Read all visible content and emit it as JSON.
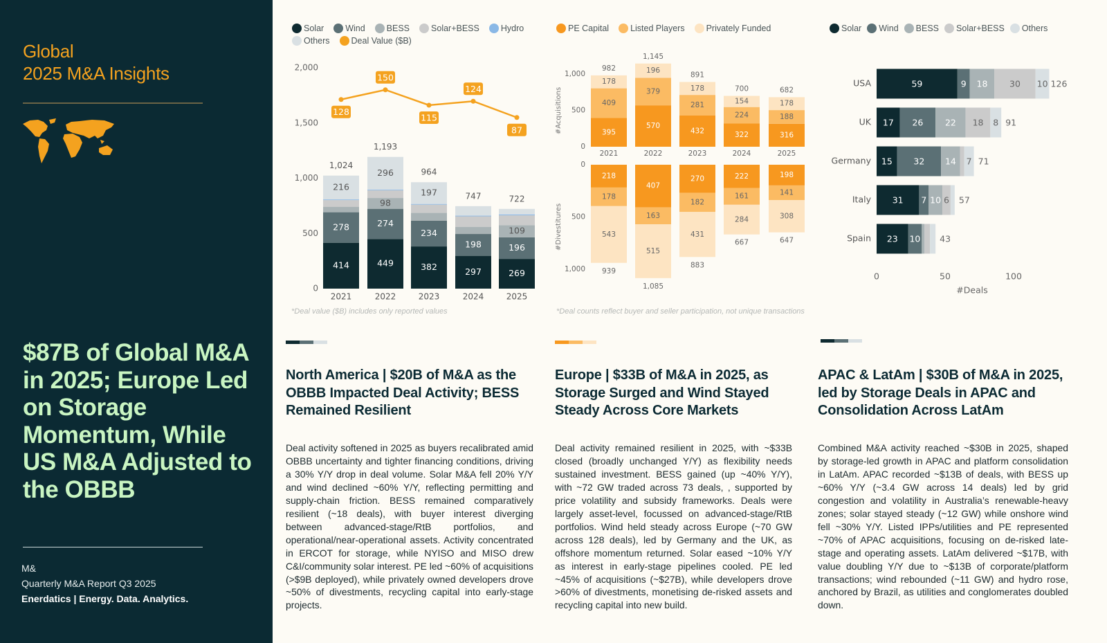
{
  "left": {
    "title_line1": "Global",
    "title_line2": "2025 M&A Insights",
    "map_icon": "world-map-icon",
    "headline": "$87B of Global M&A in 2025; Europe Led on Storage Momentum, While US M&A Adjusted to the OBBB",
    "footer_line1": "M&",
    "footer_line2": "Quarterly M&A Report Q3 2025",
    "footer_brand": "Enerdatics | Energy. Data. Analytics."
  },
  "colors": {
    "panel": "#0b2a33",
    "accent": "#f4a21f",
    "headline": "#c9f5c2",
    "solar": "#0e2a30",
    "wind": "#5b7075",
    "bess": "#a9b3b5",
    "solar_bess": "#cbcbcb",
    "hydro": "#8ab8e6",
    "others": "#d9e0e3",
    "pe": "#f7981f",
    "listed": "#fbbb63",
    "private": "#fde4c2"
  },
  "chart_data": [
    {
      "type": "bar",
      "stacked": true,
      "title": "",
      "categories": [
        "2021",
        "2022",
        "2023",
        "2024",
        "2025"
      ],
      "ylim": [
        0,
        2000
      ],
      "yticks": [
        "0",
        "500",
        "1,000",
        "1,500",
        "2,000"
      ],
      "series": [
        {
          "name": "Solar",
          "values": [
            414,
            449,
            382,
            297,
            269
          ]
        },
        {
          "name": "Wind",
          "values": [
            278,
            274,
            234,
            198,
            196
          ]
        },
        {
          "name": "BESS",
          "values": [
            50,
            98,
            70,
            65,
            109
          ]
        },
        {
          "name": "Solar+BESS",
          "values": [
            60,
            70,
            75,
            95,
            90
          ]
        },
        {
          "name": "Hydro",
          "values": [
            6,
            6,
            6,
            6,
            8
          ]
        },
        {
          "name": "Others",
          "values": [
            216,
            296,
            197,
            86,
            50
          ]
        }
      ],
      "totals": [
        "1,024",
        "1,193",
        "964",
        "747",
        "722"
      ],
      "line": {
        "name": "Deal Value ($B)",
        "type": "line",
        "values": [
          128,
          150,
          115,
          124,
          87
        ]
      },
      "legend": [
        "Solar",
        "Wind",
        "BESS",
        "Solar+BESS",
        "Hydro",
        "Others",
        "Deal Value ($B)"
      ],
      "legend_position": "top",
      "note": "*Deal value ($B) includes only reported values"
    },
    {
      "type": "bar",
      "stacked": true,
      "title": "",
      "categories": [
        "2021",
        "2022",
        "2023",
        "2024",
        "2025"
      ],
      "acquisitions": {
        "ylabel": "#Acquisitions",
        "yticks": [
          "0",
          "500",
          "1,000"
        ],
        "ylim": [
          0,
          1000
        ],
        "series": [
          {
            "name": "PE Capital",
            "values": [
              395,
              570,
              432,
              322,
              316
            ]
          },
          {
            "name": "Listed Players",
            "values": [
              409,
              379,
              281,
              224,
              188
            ]
          },
          {
            "name": "Privately Funded",
            "values": [
              178,
              196,
              178,
              154,
              178
            ]
          }
        ],
        "totals": [
          "982",
          "1,145",
          "891",
          "700",
          "682"
        ]
      },
      "divestitures": {
        "ylabel": "#Divestitures",
        "yticks": [
          "0",
          "500",
          "1,000"
        ],
        "ylim": [
          0,
          1000
        ],
        "inverted": true,
        "series": [
          {
            "name": "PE Capital",
            "values": [
              218,
              407,
              270,
              222,
              198
            ]
          },
          {
            "name": "Listed Players",
            "values": [
              178,
              163,
              182,
              161,
              141
            ]
          },
          {
            "name": "Privately Funded",
            "values": [
              543,
              515,
              431,
              284,
              308
            ]
          }
        ],
        "totals": [
          "939",
          "1,085",
          "883",
          "667",
          "647"
        ]
      },
      "legend": [
        "PE Capital",
        "Listed Players",
        "Privately Funded"
      ],
      "legend_position": "top",
      "note": "*Deal counts reflect buyer and seller participation, not unique transactions"
    },
    {
      "type": "bar",
      "orientation": "horizontal",
      "stacked": true,
      "title": "",
      "categories": [
        "USA",
        "UK",
        "Germany",
        "Italy",
        "Spain"
      ],
      "xlabel": "#Deals",
      "xlim": [
        0,
        130
      ],
      "xticks": [
        "0",
        "50",
        "100"
      ],
      "series": [
        {
          "name": "Solar",
          "values": [
            59,
            17,
            15,
            31,
            23
          ]
        },
        {
          "name": "Wind",
          "values": [
            9,
            26,
            32,
            7,
            10
          ]
        },
        {
          "name": "BESS",
          "values": [
            18,
            22,
            14,
            10,
            2
          ]
        },
        {
          "name": "Solar+BESS",
          "values": [
            30,
            18,
            3,
            6,
            4
          ]
        },
        {
          "name": "Others",
          "values": [
            10,
            8,
            7,
            3,
            4
          ]
        }
      ],
      "totals": [
        "126",
        "91",
        "71",
        "57",
        "43"
      ],
      "legend": [
        "Solar",
        "Wind",
        "BESS",
        "Solar+BESS",
        "Others"
      ],
      "legend_position": "top"
    }
  ],
  "sections": [
    {
      "title": "North America | $20B of M&A as the OBBB Impacted Deal Activity; BESS Remained Resilient",
      "body": "Deal activity softened in 2025 as buyers recalibrated amid OBBB uncertainty and tighter financing conditions, driving a 30% Y/Y drop in deal volume. Solar M&A fell 20% Y/Y and wind declined ~60% Y/Y, reflecting permitting and supply-chain friction. BESS remained comparatively resilient (~18 deals), with buyer interest diverging between advanced-stage/RtB portfolios, and operational/near-operational assets. Activity concentrated in ERCOT for storage, while NYISO and MISO drew C&I/community solar interest. PE led ~60% of acquisitions (>$9B deployed), while privately owned developers drove ~50% of divestments, recycling capital into early-stage projects."
    },
    {
      "title": "Europe | $33B of M&A in 2025, as Storage Surged and Wind Stayed Steady Across Core Markets",
      "body": "Deal activity remained resilient in 2025, with ~$33B closed (broadly unchanged Y/Y) as flexibility needs sustained investment. BESS gained (up ~40% Y/Y), with ~72 GW traded across 73 deals, , supported by price volatility and subsidy frameworks. Deals were largely asset-level, focussed on advanced-stage/RtB portfolios. Wind held steady across Europe (~70 GW across 128 deals), led by Germany and the UK, as offshore momentum returned. Solar eased ~10% Y/Y as interest in early-stage pipelines cooled. PE led ~45% of acquisitions (~$27B), while developers drove >60% of divestments, monetising de-risked assets and recycling capital into new build."
    },
    {
      "title": "APAC & LatAm | $30B of M&A in 2025, led by Storage Deals in APAC and Consolidation Across LatAm",
      "body": "Combined M&A activity reached ~$30B in 2025, shaped by storage-led growth in APAC and platform consolidation in LatAm. APAC recorded ~$13B of deals, with BESS up ~60% Y/Y (~3.4 GW across 14 deals) led by grid congestion and volatility in Australia’s renewable-heavy zones; solar stayed steady (~12 GW) while onshore wind fell ~30% Y/Y. Listed IPPs/utilities and PE represented ~70% of APAC acquisitions, focusing on de-risked late-stage and operating assets. LatAm delivered ~$17B, with value doubling Y/Y due to ~$13B of corporate/platform transactions; wind rebounded (~11 GW) and hydro rose, anchored by Brazil, as utilities and conglomerates doubled down."
    }
  ]
}
